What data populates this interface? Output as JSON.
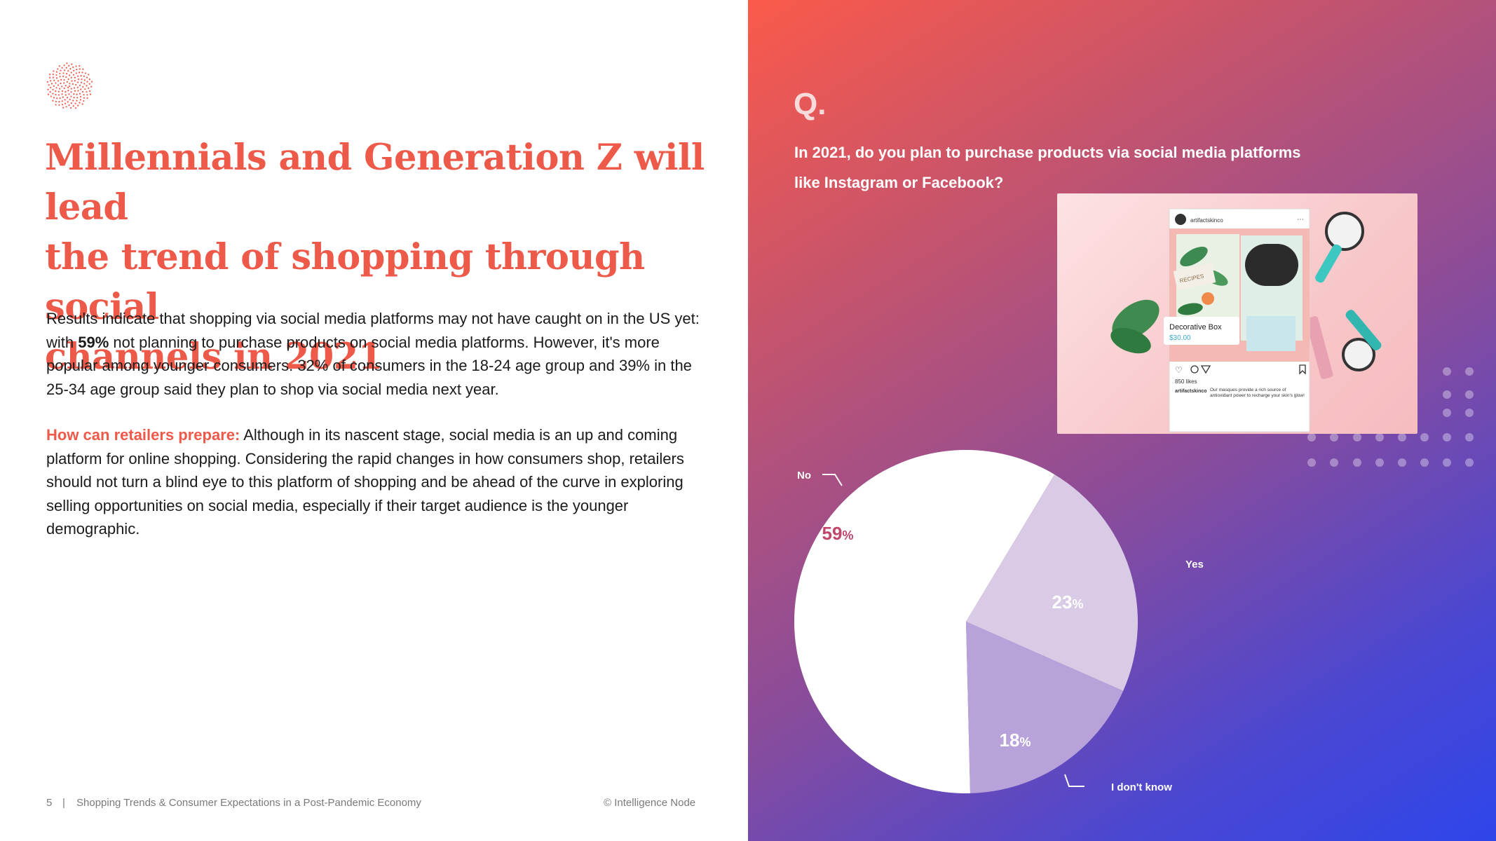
{
  "left": {
    "headline": [
      "Millennials and Generation Z will lead",
      "the trend of shopping through social",
      "channels in 2021"
    ],
    "p1": {
      "a": "Results indicate that shopping via social media platforms may not have caught on in the US yet: with ",
      "b": "59%",
      "c": " not planning to purchase products on social media platforms. However, it's more popular among younger consumers. 32% of consumers in the 18-24 age group and 39% in the 25-34 age group said they plan to shop via social media next year."
    },
    "p2": {
      "label": "How can retailers prepare:",
      "text": " Although in its nascent stage, social media is an up and coming platform for online shopping. Considering the rapid changes in how consumers shop, retailers should not turn a blind eye to this platform of shopping and be ahead of the curve in exploring selling opportunities on social media, especially if their target audience is the younger demographic."
    },
    "footer": {
      "page": "5",
      "separator": "|",
      "title": "Shopping Trends & Consumer Expectations in a Post-Pandemic Economy",
      "copyright": "© Intelligence Node"
    }
  },
  "right": {
    "q_mark": "Q.",
    "question": "In 2021, do you plan to purchase products via social media platforms like Instagram or Facebook?",
    "photo": {
      "account": "artifactskinco",
      "tag_title": "Decorative Box",
      "tag_price": "$30.00",
      "likes": "850 likes",
      "caption_user": "artifactskinco",
      "caption_text": "Our masques provide a rich source of antioxidant power to recharge your skin's glow!",
      "jar_label": "RECIPES"
    }
  },
  "chart_data": {
    "type": "pie",
    "title": "",
    "slices": [
      {
        "label": "No",
        "value": 59,
        "color": "#ffffff",
        "value_color": "#c0466a"
      },
      {
        "label": "Yes",
        "value": 23,
        "color": "#d9cbe6",
        "value_color": "#ffffff"
      },
      {
        "label": "I don't know",
        "value": 18,
        "color": "#b7a3d9",
        "value_color": "#ffffff"
      }
    ],
    "unit": "%"
  }
}
